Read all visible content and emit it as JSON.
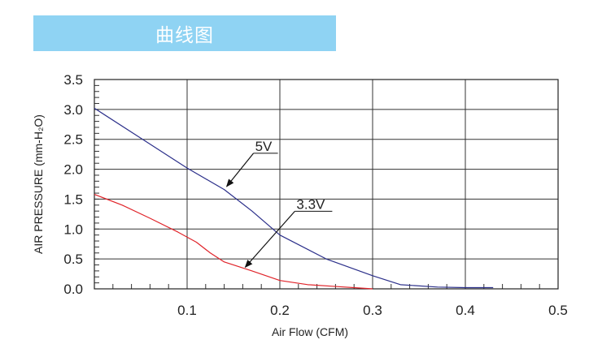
{
  "banner": {
    "title": "曲线图",
    "color": "#8fd3f3"
  },
  "chart_data": {
    "type": "line",
    "title": "",
    "xlabel": "Air Flow (CFM)",
    "ylabel": "AIR PRESSURE (mm-H₂O)",
    "xlim": [
      0,
      0.5
    ],
    "ylim": [
      0,
      3.5
    ],
    "x_ticks": [
      "0.1",
      "0.2",
      "0.3",
      "0.4",
      "0.5"
    ],
    "y_ticks": [
      "0.0",
      "0.5",
      "1.0",
      "1.5",
      "2.0",
      "2.5",
      "3.0",
      "3.5"
    ],
    "grid": true,
    "series": [
      {
        "name": "5V",
        "color": "#2b2f8a",
        "x": [
          0,
          0.05,
          0.1,
          0.14,
          0.17,
          0.2,
          0.25,
          0.3,
          0.33,
          0.37,
          0.4,
          0.43
        ],
        "y": [
          3.02,
          2.52,
          2.02,
          1.66,
          1.3,
          0.9,
          0.5,
          0.22,
          0.07,
          0.03,
          0.02,
          0.02
        ]
      },
      {
        "name": "3.3V",
        "color": "#e0242a",
        "x": [
          0,
          0.03,
          0.06,
          0.09,
          0.11,
          0.125,
          0.14,
          0.17,
          0.2,
          0.23,
          0.26,
          0.29,
          0.3
        ],
        "y": [
          1.58,
          1.4,
          1.18,
          0.95,
          0.78,
          0.6,
          0.45,
          0.3,
          0.14,
          0.07,
          0.04,
          0.01,
          0.0
        ]
      }
    ],
    "annotations": [
      {
        "text": "5V",
        "series": "5V",
        "arrow_to": [
          0.14,
          1.67
        ]
      },
      {
        "text": "3.3V",
        "series": "3.3V",
        "arrow_to": [
          0.16,
          0.32
        ]
      }
    ]
  }
}
